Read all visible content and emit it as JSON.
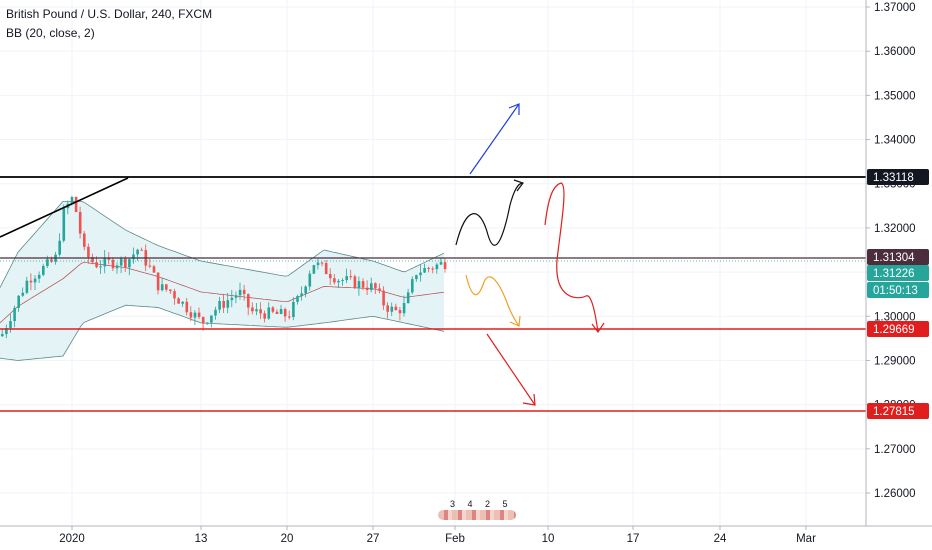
{
  "header": {
    "symbol_line": "British Pound / U.S. Dollar, 240, FXCM",
    "indicator_line": "BB (20, close, 2)"
  },
  "price_scale": {
    "ticks": [
      "1.37000",
      "1.36000",
      "1.35000",
      "1.34000",
      "1.33000",
      "1.32000",
      "1.31000",
      "1.30000",
      "1.29000",
      "1.28000",
      "1.27000",
      "1.26000"
    ]
  },
  "price_tags": [
    {
      "label": "1.33118",
      "value": 1.33118,
      "bg": "#131722",
      "fg": "#ffffff"
    },
    {
      "label": "1.31304",
      "value": 1.31304,
      "bg": "#4b2d3c",
      "fg": "#ffffff"
    },
    {
      "label": "1.31226",
      "value": 1.31226,
      "bg": "#26a69a",
      "fg": "#ffffff"
    },
    {
      "label": "01:50:13",
      "value": 1.30826,
      "bg": "#26a69a",
      "fg": "#ffffff"
    },
    {
      "label": "1.29669",
      "value": 1.29669,
      "bg": "#e01e1e",
      "fg": "#ffffff"
    },
    {
      "label": "1.27815",
      "value": 1.27815,
      "bg": "#e01e1e",
      "fg": "#ffffff"
    }
  ],
  "time_axis": {
    "labels": [
      "2020",
      "13",
      "20",
      "27",
      "Feb",
      "10",
      "17",
      "24",
      "Mar"
    ]
  },
  "events_widget": {
    "numbers": "3 4 2 5"
  },
  "colors": {
    "up": "#26a69a",
    "down": "#ef5350",
    "band_fill": "#e3f3f6",
    "band_line": "#5a8a8a",
    "basis": "#b34a4a",
    "support": "#e01e1e",
    "resistance": "#000000",
    "current": "#4b2d3c",
    "arrow_blue": "#1f3fd8",
    "arrow_black": "#111111",
    "arrow_orange": "#f0a020",
    "arrow_red": "#e01e1e"
  },
  "chart_data": {
    "type": "candlestick",
    "title": "British Pound / U.S. Dollar, 240, FXCM",
    "indicator": "BB (20, close, 2)",
    "ylim": [
      1.255,
      1.3735
    ],
    "y_ticks": [
      1.37,
      1.36,
      1.35,
      1.34,
      1.33,
      1.32,
      1.31,
      1.3,
      1.29,
      1.28,
      1.27,
      1.26
    ],
    "x_ticks": [
      "2020",
      "13",
      "20",
      "27",
      "Feb",
      "10",
      "17",
      "24",
      "Mar"
    ],
    "last_price": 1.31226,
    "horizontal_levels": [
      1.33118,
      1.31304,
      1.29669,
      1.27815
    ],
    "price_path": [
      {
        "d": "Dec 24",
        "v": 1.2955
      },
      {
        "d": "Dec 26",
        "v": 1.3045
      },
      {
        "d": "Dec 27",
        "v": 1.3085
      },
      {
        "d": "Dec 30",
        "v": 1.3128
      },
      {
        "d": "Dec 31",
        "v": 1.324
      },
      {
        "d": "Jan 1",
        "v": 1.327
      },
      {
        "d": "Jan 2",
        "v": 1.3145
      },
      {
        "d": "Jan 3",
        "v": 1.3118
      },
      {
        "d": "Jan 6",
        "v": 1.3125
      },
      {
        "d": "Jan 7",
        "v": 1.3152
      },
      {
        "d": "Jan 8",
        "v": 1.3115
      },
      {
        "d": "Jan 9",
        "v": 1.3065
      },
      {
        "d": "Jan 10",
        "v": 1.3058
      },
      {
        "d": "Jan 13",
        "v": 1.2985
      },
      {
        "d": "Jan 14",
        "v": 1.3015
      },
      {
        "d": "Jan 15",
        "v": 1.3035
      },
      {
        "d": "Jan 16",
        "v": 1.3055
      },
      {
        "d": "Jan 17",
        "v": 1.301
      },
      {
        "d": "Jan 20",
        "v": 1.3002
      },
      {
        "d": "Jan 21",
        "v": 1.3048
      },
      {
        "d": "Jan 22",
        "v": 1.3122
      },
      {
        "d": "Jan 23",
        "v": 1.3105
      },
      {
        "d": "Jan 24",
        "v": 1.3085
      },
      {
        "d": "Jan 27",
        "v": 1.3065
      },
      {
        "d": "Jan 28",
        "v": 1.3025
      },
      {
        "d": "Jan 29",
        "v": 1.301
      },
      {
        "d": "Jan 30",
        "v": 1.3025
      },
      {
        "d": "Jan 31",
        "v": 1.31
      },
      {
        "d": "Feb 3",
        "v": 1.31226
      }
    ],
    "bollinger_upper_path": [
      {
        "d": "Dec 24",
        "v": 1.3065
      },
      {
        "d": "Dec 26",
        "v": 1.3145
      },
      {
        "d": "Dec 31",
        "v": 1.326
      },
      {
        "d": "Jan 2",
        "v": 1.326
      },
      {
        "d": "Jan 6",
        "v": 1.3195
      },
      {
        "d": "Jan 9",
        "v": 1.316
      },
      {
        "d": "Jan 13",
        "v": 1.3125
      },
      {
        "d": "Jan 20",
        "v": 1.309
      },
      {
        "d": "Jan 23",
        "v": 1.315
      },
      {
        "d": "Jan 27",
        "v": 1.3125
      },
      {
        "d": "Jan 30",
        "v": 1.31
      },
      {
        "d": "Feb 3",
        "v": 1.3145
      }
    ],
    "bollinger_lower_path": [
      {
        "d": "Dec 24",
        "v": 1.2905
      },
      {
        "d": "Dec 26",
        "v": 1.29
      },
      {
        "d": "Dec 31",
        "v": 1.291
      },
      {
        "d": "Jan 2",
        "v": 1.2985
      },
      {
        "d": "Jan 6",
        "v": 1.3025
      },
      {
        "d": "Jan 9",
        "v": 1.302
      },
      {
        "d": "Jan 13",
        "v": 1.2985
      },
      {
        "d": "Jan 20",
        "v": 1.2975
      },
      {
        "d": "Jan 23",
        "v": 1.2985
      },
      {
        "d": "Jan 27",
        "v": 1.3
      },
      {
        "d": "Jan 30",
        "v": 1.2985
      },
      {
        "d": "Feb 3",
        "v": 1.2965
      }
    ]
  }
}
